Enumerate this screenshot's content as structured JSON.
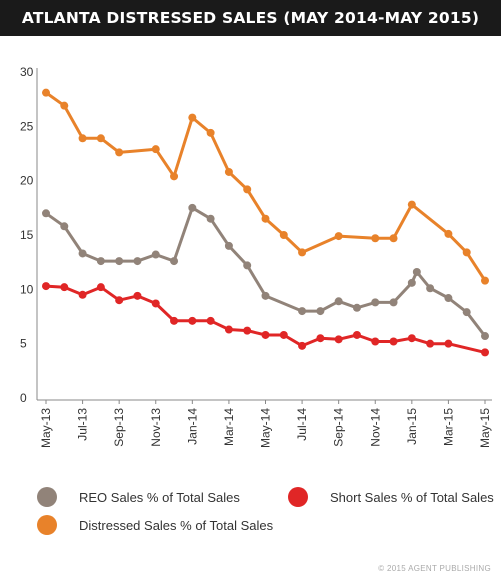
{
  "title": "ATLANTA DISTRESSED SALES (MAY 2014-MAY 2015)",
  "credit": "© 2015 AGENT PUBLISHING",
  "chart_data": {
    "type": "line",
    "title": "ATLANTA DISTRESSED SALES (MAY 2014-MAY 2015)",
    "xlabel": "",
    "ylabel": "",
    "ylim": [
      0,
      30
    ],
    "yticks": [
      0,
      5,
      10,
      15,
      20,
      25,
      30
    ],
    "grid": false,
    "legend": "bottom",
    "x": [
      "May-13",
      "Jun-13",
      "Jul-13",
      "Aug-13",
      "Sep-13",
      "Oct-13",
      "Nov-13",
      "Dec-13",
      "Jan-14",
      "Feb-14",
      "Mar-14",
      "Apr-14",
      "May-14",
      "Jun-14",
      "Jul-14",
      "Aug-14",
      "Sep-14",
      "Oct-14",
      "Nov-14",
      "Dec-14",
      "Jan-15",
      "Feb-15",
      "Mar-15",
      "Apr-15",
      "May-15"
    ],
    "xticks": [
      "May-13",
      "Jul-13",
      "Sep-13",
      "Nov-13",
      "Jan-14",
      "Mar-14",
      "May-14",
      "Jul-14",
      "Sep-14",
      "Nov-14",
      "Jan-15",
      "Mar-15",
      "May-15"
    ],
    "series": [
      {
        "name": "REO Sales % of Total Sales",
        "color": "#918379",
        "points": [
          [
            "May-13",
            17.0
          ],
          [
            "Jun-13",
            15.8
          ],
          [
            "Jul-13",
            13.3
          ],
          [
            "Aug-13",
            12.6
          ],
          [
            "Sep-13",
            12.6
          ],
          [
            "Oct-13",
            12.6
          ],
          [
            "Nov-13",
            13.2
          ],
          [
            "Dec-13",
            12.6
          ],
          [
            "Jan-14",
            17.5
          ],
          [
            "Feb-14",
            16.5
          ],
          [
            "Mar-14",
            14.0
          ],
          [
            "Apr-14",
            12.2
          ],
          [
            "May-14",
            9.4
          ],
          [
            "Jul-14",
            8.0
          ],
          [
            "Aug-14",
            8.0
          ],
          [
            "Sep-14",
            8.9
          ],
          [
            "Oct-14",
            8.3
          ],
          [
            "Nov-14",
            8.8
          ],
          [
            "Dec-14",
            8.8
          ],
          [
            "Jan-15",
            10.6
          ],
          [
            "Jan-15",
            11.6
          ],
          [
            "Feb-15",
            10.1
          ],
          [
            "Mar-15",
            9.2
          ],
          [
            "Apr-15",
            7.9
          ],
          [
            "May-15",
            5.7
          ]
        ]
      },
      {
        "name": "Short Sales % of Total Sales",
        "color": "#e02626",
        "points": [
          [
            "May-13",
            10.3
          ],
          [
            "Jun-13",
            10.2
          ],
          [
            "Jul-13",
            9.5
          ],
          [
            "Aug-13",
            10.2
          ],
          [
            "Sep-13",
            9.0
          ],
          [
            "Oct-13",
            9.4
          ],
          [
            "Nov-13",
            8.7
          ],
          [
            "Dec-13",
            7.1
          ],
          [
            "Jan-14",
            7.1
          ],
          [
            "Feb-14",
            7.1
          ],
          [
            "Mar-14",
            6.3
          ],
          [
            "Apr-14",
            6.2
          ],
          [
            "May-14",
            5.8
          ],
          [
            "Jun-14",
            5.8
          ],
          [
            "Jul-14",
            4.8
          ],
          [
            "Aug-14",
            5.5
          ],
          [
            "Sep-14",
            5.4
          ],
          [
            "Oct-14",
            5.8
          ],
          [
            "Nov-14",
            5.2
          ],
          [
            "Dec-14",
            5.2
          ],
          [
            "Jan-15",
            5.5
          ],
          [
            "Feb-15",
            5.0
          ],
          [
            "Mar-15",
            5.0
          ],
          [
            "May-15",
            4.2
          ]
        ]
      },
      {
        "name": "Distressed Sales % of Total Sales",
        "color": "#e8822a",
        "points": [
          [
            "May-13",
            28.1
          ],
          [
            "Jun-13",
            26.9
          ],
          [
            "Jul-13",
            23.9
          ],
          [
            "Aug-13",
            23.9
          ],
          [
            "Sep-13",
            22.6
          ],
          [
            "Nov-13",
            22.9
          ],
          [
            "Dec-13",
            20.4
          ],
          [
            "Jan-14",
            25.8
          ],
          [
            "Feb-14",
            24.4
          ],
          [
            "Mar-14",
            20.8
          ],
          [
            "Apr-14",
            19.2
          ],
          [
            "May-14",
            16.5
          ],
          [
            "Jun-14",
            15.0
          ],
          [
            "Jul-14",
            13.4
          ],
          [
            "Sep-14",
            14.9
          ],
          [
            "Nov-14",
            14.7
          ],
          [
            "Dec-14",
            14.7
          ],
          [
            "Jan-15",
            17.8
          ],
          [
            "Mar-15",
            15.1
          ],
          [
            "Apr-15",
            13.4
          ],
          [
            "May-15",
            10.8
          ]
        ]
      }
    ]
  },
  "legend_items": [
    {
      "label": "REO Sales % of Total Sales",
      "color": "#918379"
    },
    {
      "label": "Short Sales % of Total Sales",
      "color": "#e02626"
    },
    {
      "label": "Distressed Sales % of Total Sales",
      "color": "#e8822a"
    }
  ]
}
